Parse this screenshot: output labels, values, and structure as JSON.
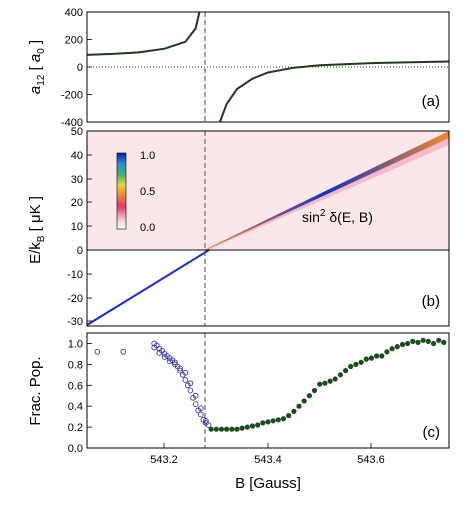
{
  "chart_data": [
    {
      "panel_label": "(a)",
      "type": "line",
      "ylabel_main": "a",
      "ylabel_sub": "12",
      "ylabel_unit_open": " [ ",
      "ylabel_unit_main": "a",
      "ylabel_unit_sub": "0",
      "ylabel_unit_close": " ]",
      "ylim": [
        -400,
        400
      ],
      "yticks": [
        "400",
        "200",
        "0",
        "-200",
        "-400"
      ],
      "xlim": [
        543.05,
        543.75
      ],
      "resonance_B": 543.286,
      "background_a": 80,
      "series": [
        {
          "x": [
            543.05,
            543.1,
            543.15,
            543.2,
            543.24,
            543.26,
            543.27,
            543.275
          ],
          "y": [
            88,
            95,
            106,
            133,
            183,
            280,
            440,
            600
          ]
        },
        {
          "x": [
            543.297,
            543.305,
            543.32,
            543.34,
            543.37,
            543.4,
            543.45,
            543.5,
            543.6,
            543.75
          ],
          "y": [
            -600,
            -420,
            -270,
            -160,
            -85,
            -40,
            -5,
            12,
            28,
            40
          ]
        }
      ],
      "color": "#1f3a1f"
    },
    {
      "panel_label": "(b)",
      "type": "heatmap",
      "ylabel": "E/k",
      "ylabel_sub": "B",
      "ylabel_unit": " [ μK ]",
      "ylim": [
        -33,
        50
      ],
      "yticks": [
        "50",
        "40",
        "30",
        "20",
        "10",
        "0",
        "-10",
        "-20",
        "-30"
      ],
      "annotation_main": "sin",
      "annotation_sup": "2",
      "annotation_rest": " δ(E, B)",
      "colorbar_ticks": [
        "1.0",
        "0.5",
        "0.0"
      ],
      "colorbar_range": [
        0,
        1
      ],
      "bound_state_line": {
        "x": [
          543.05,
          543.286
        ],
        "y": [
          -31.5,
          0
        ]
      },
      "resonance_ridge": {
        "x": [
          543.286,
          543.75
        ],
        "y": [
          0,
          50
        ]
      }
    },
    {
      "panel_label": "(c)",
      "type": "scatter",
      "ylabel": "Frac. Pop.",
      "xlabel": "B [Gauss]",
      "ylim": [
        0,
        1.1
      ],
      "yticks": [
        "1.0",
        "0.8",
        "0.6",
        "0.4",
        "0.2",
        "0.0"
      ],
      "xlim": [
        543.05,
        543.75
      ],
      "xticks": [
        "543.2",
        "543.4",
        "543.6"
      ],
      "xtick_values": [
        543.2,
        543.4,
        543.6
      ],
      "series": [
        {
          "marker": "open-circle",
          "color": "#3a3aa8",
          "x": [
            543.07,
            543.12,
            543.18,
            543.185,
            543.19,
            543.195,
            543.2,
            543.205,
            543.21,
            543.215,
            543.22,
            543.225,
            543.23,
            543.235,
            543.24,
            543.245,
            543.25,
            543.255,
            543.26,
            543.265,
            543.27,
            543.275,
            543.28,
            543.285,
            543.18,
            543.19,
            543.2,
            543.21,
            543.22,
            543.23,
            543.24,
            543.25,
            543.26,
            543.27,
            543.28
          ],
          "y": [
            0.92,
            0.92,
            1.0,
            0.98,
            0.95,
            0.93,
            0.9,
            0.88,
            0.86,
            0.84,
            0.82,
            0.78,
            0.74,
            0.7,
            0.65,
            0.6,
            0.55,
            0.48,
            0.42,
            0.36,
            0.32,
            0.27,
            0.24,
            0.22,
            0.96,
            0.91,
            0.87,
            0.83,
            0.8,
            0.76,
            0.72,
            0.62,
            0.5,
            0.38,
            0.26
          ]
        },
        {
          "marker": "filled-circle",
          "color": "#1e4b1e",
          "x": [
            543.29,
            543.3,
            543.31,
            543.32,
            543.33,
            543.34,
            543.35,
            543.36,
            543.37,
            543.38,
            543.39,
            543.4,
            543.41,
            543.42,
            543.43,
            543.44,
            543.45,
            543.46,
            543.47,
            543.48,
            543.49,
            543.5,
            543.51,
            543.52,
            543.53,
            543.54,
            543.55,
            543.56,
            543.57,
            543.58,
            543.59,
            543.6,
            543.61,
            543.62,
            543.63,
            543.64,
            543.65,
            543.66,
            543.67,
            543.68,
            543.69,
            543.7,
            543.71,
            543.72,
            543.73,
            543.74
          ],
          "y": [
            0.18,
            0.18,
            0.18,
            0.18,
            0.18,
            0.18,
            0.19,
            0.2,
            0.21,
            0.22,
            0.24,
            0.25,
            0.26,
            0.27,
            0.28,
            0.31,
            0.35,
            0.4,
            0.45,
            0.5,
            0.55,
            0.61,
            0.62,
            0.64,
            0.66,
            0.7,
            0.74,
            0.78,
            0.8,
            0.82,
            0.85,
            0.86,
            0.88,
            0.88,
            0.92,
            0.95,
            0.97,
            0.99,
            1.0,
            1.02,
            1.01,
            1.03,
            1.02,
            1.0,
            1.03,
            1.01
          ]
        }
      ]
    }
  ]
}
